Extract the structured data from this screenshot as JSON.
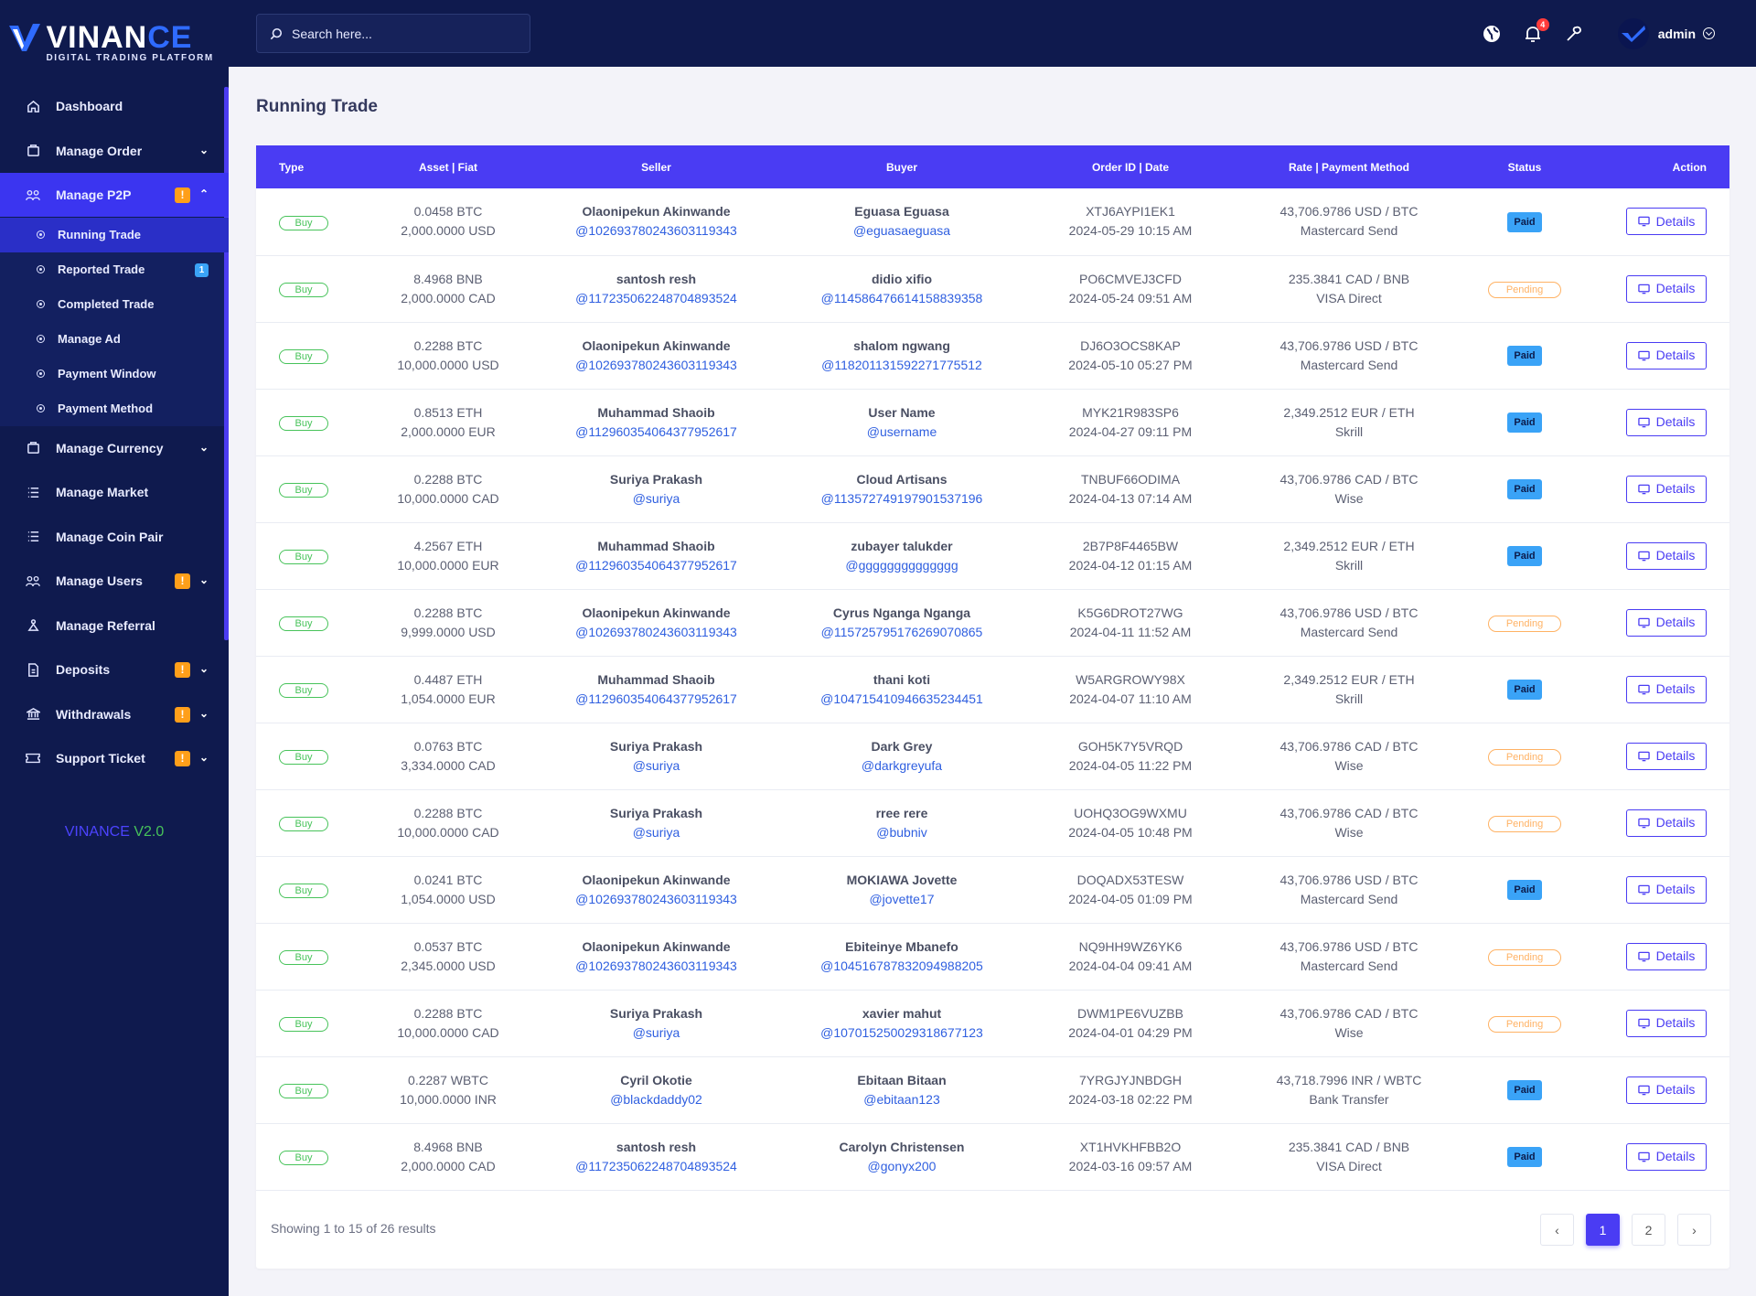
{
  "brand": {
    "name_part1": "VINAN",
    "name_part2": "CE",
    "tagline": "DIGITAL TRADING PLATFORM",
    "accent": "#2f6bff"
  },
  "sidebar": {
    "items": [
      {
        "label": "Dashboard",
        "icon": "home-icon"
      },
      {
        "label": "Manage Order",
        "icon": "order-icon"
      },
      {
        "label": "Manage P2P",
        "icon": "p2p-icon"
      },
      {
        "label": "Manage Currency",
        "icon": "currency-icon"
      },
      {
        "label": "Manage Market",
        "icon": "market-icon"
      },
      {
        "label": "Manage Coin Pair",
        "icon": "coin-pair-icon"
      },
      {
        "label": "Manage Users",
        "icon": "users-icon"
      },
      {
        "label": "Manage Referral",
        "icon": "referral-icon"
      },
      {
        "label": "Deposits",
        "icon": "deposits-icon"
      },
      {
        "label": "Withdrawals",
        "icon": "bank-icon"
      },
      {
        "label": "Support Ticket",
        "icon": "ticket-icon"
      }
    ],
    "p2p_sub": [
      {
        "label": "Running Trade"
      },
      {
        "label": "Reported Trade",
        "count": "1"
      },
      {
        "label": "Completed Trade"
      },
      {
        "label": "Manage Ad"
      },
      {
        "label": "Payment Window"
      },
      {
        "label": "Payment Method"
      }
    ],
    "warn_glyph": "!",
    "version_name": "VINANCE",
    "version_number": "V2.0"
  },
  "topbar": {
    "search_placeholder": "Search here...",
    "notification_count": "4",
    "username": "admin"
  },
  "page": {
    "title": "Running Trade"
  },
  "table": {
    "headers": [
      "Type",
      "Asset | Fiat",
      "Seller",
      "Buyer",
      "Order ID | Date",
      "Rate | Payment Method",
      "Status",
      "Action"
    ],
    "details_label": "Details",
    "rows": [
      {
        "type": "Buy",
        "asset": "0.0458 BTC",
        "fiat": "2,000.0000 USD",
        "seller": "Olaonipekun Akinwande",
        "seller_handle": "@10269378024360311934​3",
        "buyer": "Eguasa Eguasa",
        "buyer_handle": "@eguasaeguasa",
        "order_id": "XTJ6AYPI1EK1",
        "date": "2024-05-29 10:15 AM",
        "rate": "43,706.9786 USD / BTC",
        "method": "Mastercard Send",
        "status": "Paid"
      },
      {
        "type": "Buy",
        "asset": "8.4968 BNB",
        "fiat": "2,000.0000 CAD",
        "seller": "santosh resh",
        "seller_handle": "@117235062248704893524",
        "buyer": "didio xifio",
        "buyer_handle": "@114586476614158839358",
        "order_id": "PO6CMVEJ3CFD",
        "date": "2024-05-24 09:51 AM",
        "rate": "235.3841 CAD / BNB",
        "method": "VISA Direct",
        "status": "Pending"
      },
      {
        "type": "Buy",
        "asset": "0.2288 BTC",
        "fiat": "10,000.0000 USD",
        "seller": "Olaonipekun Akinwande",
        "seller_handle": "@102693780243603119343",
        "buyer": "shalom ngwang",
        "buyer_handle": "@118201131592271775512",
        "order_id": "DJ6O3OCS8KAP",
        "date": "2024-05-10 05:27 PM",
        "rate": "43,706.9786 USD / BTC",
        "method": "Mastercard Send",
        "status": "Paid"
      },
      {
        "type": "Buy",
        "asset": "0.8513 ETH",
        "fiat": "2,000.0000 EUR",
        "seller": "Muhammad Shaoib",
        "seller_handle": "@112960354064377952617",
        "buyer": "User Name",
        "buyer_handle": "@username",
        "order_id": "MYK21R983SP6",
        "date": "2024-04-27 09:11 PM",
        "rate": "2,349.2512 EUR / ETH",
        "method": "Skrill",
        "status": "Paid"
      },
      {
        "type": "Buy",
        "asset": "0.2288 BTC",
        "fiat": "10,000.0000 CAD",
        "seller": "Suriya Prakash",
        "seller_handle": "@suriya",
        "buyer": "Cloud Artisans",
        "buyer_handle": "@113572749197901537196",
        "order_id": "TNBUF66ODIMA",
        "date": "2024-04-13 07:14 AM",
        "rate": "43,706.9786 CAD / BTC",
        "method": "Wise",
        "status": "Paid"
      },
      {
        "type": "Buy",
        "asset": "4.2567 ETH",
        "fiat": "10,000.0000 EUR",
        "seller": "Muhammad Shaoib",
        "seller_handle": "@112960354064377952617",
        "buyer": "zubayer talukder",
        "buyer_handle": "@gggggggggggggg",
        "order_id": "2B7P8F4465BW",
        "date": "2024-04-12 01:15 AM",
        "rate": "2,349.2512 EUR / ETH",
        "method": "Skrill",
        "status": "Paid"
      },
      {
        "type": "Buy",
        "asset": "0.2288 BTC",
        "fiat": "9,999.0000 USD",
        "seller": "Olaonipekun Akinwande",
        "seller_handle": "@102693780243603119343",
        "buyer": "Cyrus Nganga Nganga",
        "buyer_handle": "@115725795176269070865",
        "order_id": "K5G6DROT27WG",
        "date": "2024-04-11 11:52 AM",
        "rate": "43,706.9786 USD / BTC",
        "method": "Mastercard Send",
        "status": "Pending"
      },
      {
        "type": "Buy",
        "asset": "0.4487 ETH",
        "fiat": "1,054.0000 EUR",
        "seller": "Muhammad Shaoib",
        "seller_handle": "@112960354064377952617",
        "buyer": "thani koti",
        "buyer_handle": "@104715410946635234451",
        "order_id": "W5ARGROWY98X",
        "date": "2024-04-07 11:10 AM",
        "rate": "2,349.2512 EUR / ETH",
        "method": "Skrill",
        "status": "Paid"
      },
      {
        "type": "Buy",
        "asset": "0.0763 BTC",
        "fiat": "3,334.0000 CAD",
        "seller": "Suriya Prakash",
        "seller_handle": "@suriya",
        "buyer": "Dark Grey",
        "buyer_handle": "@darkgreyufa",
        "order_id": "GOH5K7Y5VRQD",
        "date": "2024-04-05 11:22 PM",
        "rate": "43,706.9786 CAD / BTC",
        "method": "Wise",
        "status": "Pending"
      },
      {
        "type": "Buy",
        "asset": "0.2288 BTC",
        "fiat": "10,000.0000 CAD",
        "seller": "Suriya Prakash",
        "seller_handle": "@suriya",
        "buyer": "rree rere",
        "buyer_handle": "@bubniv",
        "order_id": "UOHQ3OG9WXMU",
        "date": "2024-04-05 10:48 PM",
        "rate": "43,706.9786 CAD / BTC",
        "method": "Wise",
        "status": "Pending"
      },
      {
        "type": "Buy",
        "asset": "0.0241 BTC",
        "fiat": "1,054.0000 USD",
        "seller": "Olaonipekun Akinwande",
        "seller_handle": "@102693780243603119343",
        "buyer": "MOKIAWA Jovette",
        "buyer_handle": "@jovette17",
        "order_id": "DOQADX53TESW",
        "date": "2024-04-05 01:09 PM",
        "rate": "43,706.9786 USD / BTC",
        "method": "Mastercard Send",
        "status": "Paid"
      },
      {
        "type": "Buy",
        "asset": "0.0537 BTC",
        "fiat": "2,345.0000 USD",
        "seller": "Olaonipekun Akinwande",
        "seller_handle": "@102693780243603119343",
        "buyer": "Ebiteinye Mbanefo",
        "buyer_handle": "@104516787832094988205",
        "order_id": "NQ9HH9WZ6YK6",
        "date": "2024-04-04 09:41 AM",
        "rate": "43,706.9786 USD / BTC",
        "method": "Mastercard Send",
        "status": "Pending"
      },
      {
        "type": "Buy",
        "asset": "0.2288 BTC",
        "fiat": "10,000.0000 CAD",
        "seller": "Suriya Prakash",
        "seller_handle": "@suriya",
        "buyer": "xavier mahut",
        "buyer_handle": "@107015250029318677123",
        "order_id": "DWM1PE6VUZBB",
        "date": "2024-04-01 04:29 PM",
        "rate": "43,706.9786 CAD / BTC",
        "method": "Wise",
        "status": "Pending"
      },
      {
        "type": "Buy",
        "asset": "0.2287 WBTC",
        "fiat": "10,000.0000 INR",
        "seller": "Cyril Okotie",
        "seller_handle": "@blackdaddy02",
        "buyer": "Ebitaan Bitaan",
        "buyer_handle": "@ebitaan123",
        "order_id": "7YRGJYJNBDGH",
        "date": "2024-03-18 02:22 PM",
        "rate": "43,718.7996 INR / WBTC",
        "method": "Bank Transfer",
        "status": "Paid"
      },
      {
        "type": "Buy",
        "asset": "8.4968 BNB",
        "fiat": "2,000.0000 CAD",
        "seller": "santosh resh",
        "seller_handle": "@117235062248704893524",
        "buyer": "Carolyn Christensen",
        "buyer_handle": "@gonyx200",
        "order_id": "XT1HVKHFBB2O",
        "date": "2024-03-16 09:57 AM",
        "rate": "235.3841 CAD / BNB",
        "method": "VISA Direct",
        "status": "Paid"
      }
    ]
  },
  "pagination": {
    "summary": "Showing 1 to 15 of 26 results",
    "prev": "‹",
    "pages": [
      "1",
      "2"
    ],
    "next": "›"
  }
}
